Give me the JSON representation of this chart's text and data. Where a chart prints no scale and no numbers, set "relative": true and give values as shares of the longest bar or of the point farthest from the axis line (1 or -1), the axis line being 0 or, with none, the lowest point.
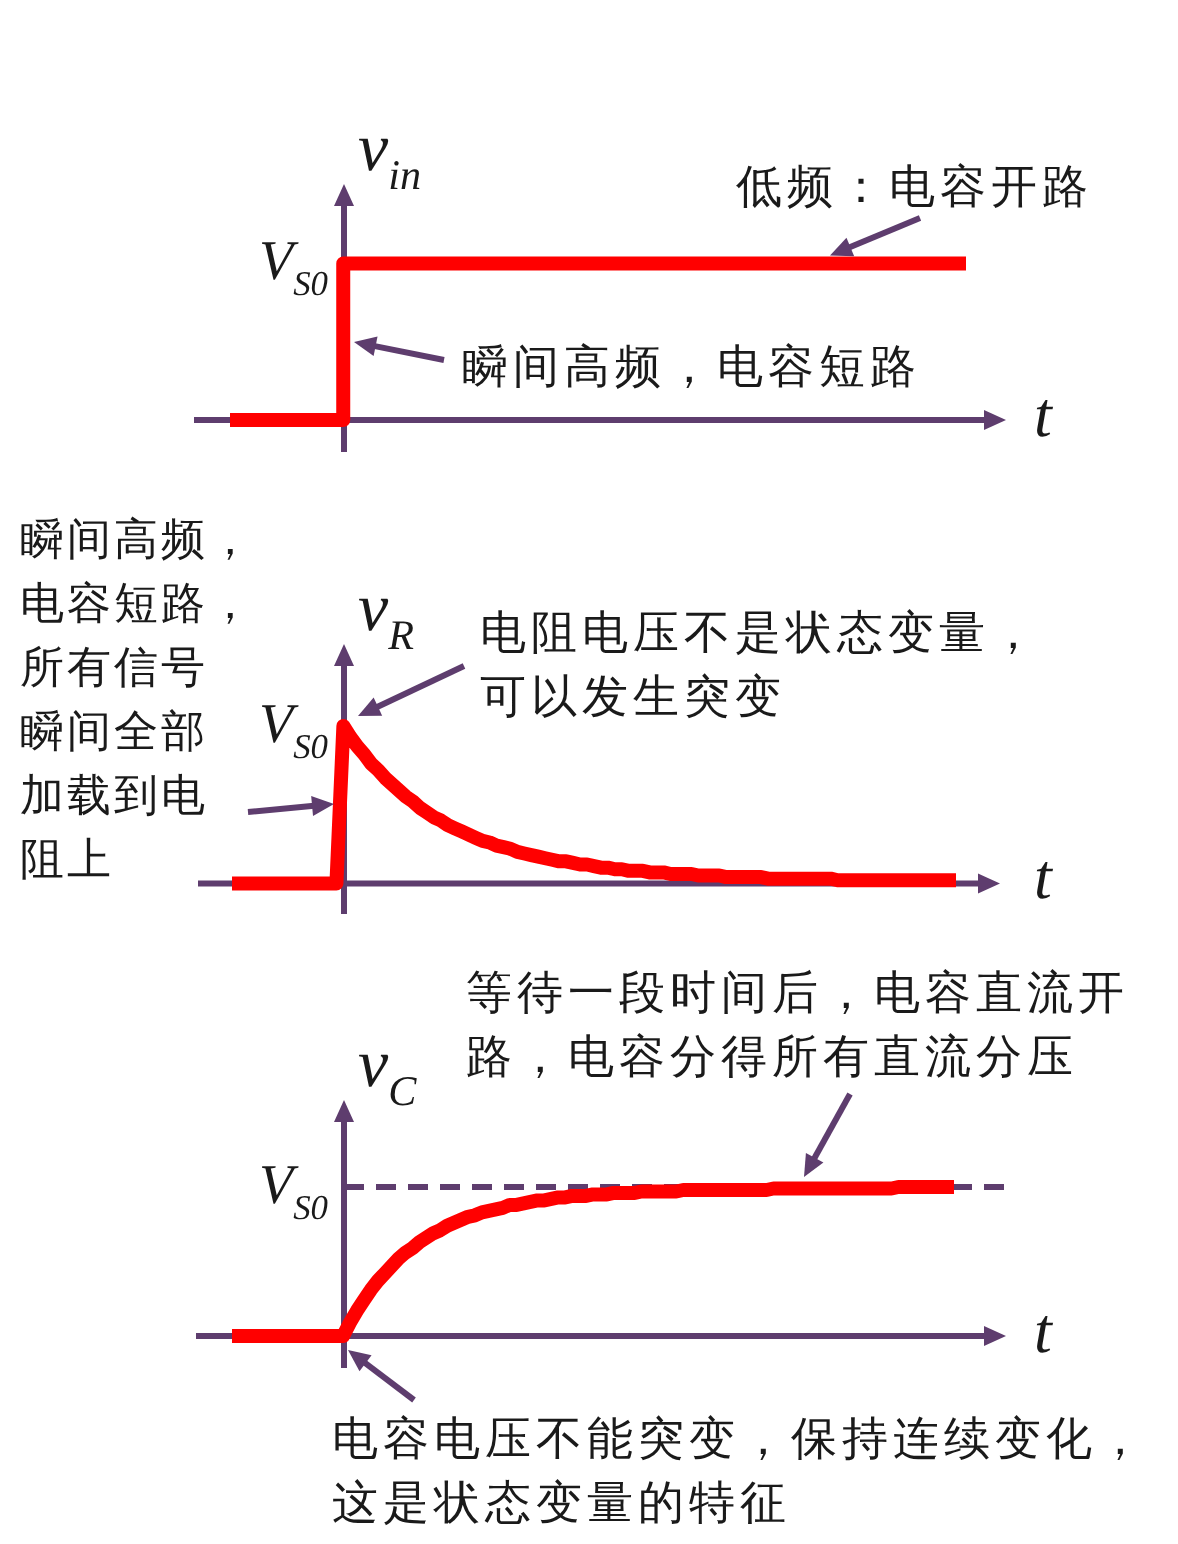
{
  "chart_data": [
    {
      "type": "step",
      "relative": true,
      "ylabel": "v$_{in}$",
      "xlabel": "t",
      "categories": [
        null,
        null,
        null,
        null,
        null,
        null,
        null,
        null,
        null,
        null,
        null,
        null,
        null,
        null
      ],
      "series": [
        {
          "color": "#ff0000",
          "values": [
            0,
            0,
            1,
            1,
            1,
            1,
            1,
            1,
            1,
            1,
            1,
            1,
            1,
            1
          ]
        }
      ],
      "annotations": [
        "V$_{S0}$",
        {
          "text": "低频：电容开路",
          "y": 1
        },
        "瞬间高频，电容短路"
      ]
    },
    {
      "type": "line",
      "relative": true,
      "ylabel": "v$_{R}$",
      "xlabel": "t",
      "categories": [
        null,
        null,
        null,
        null,
        null,
        null,
        null,
        null,
        null,
        null,
        null,
        null,
        null,
        null,
        null,
        null,
        null,
        null,
        null,
        null,
        null,
        null,
        null,
        null,
        null,
        null,
        null,
        null,
        null,
        null,
        null,
        null,
        null,
        null,
        null,
        null,
        null,
        null,
        null,
        null,
        null,
        null,
        null,
        null,
        null,
        null,
        null,
        null,
        null,
        null,
        null,
        null,
        null,
        null,
        null,
        null,
        null,
        null,
        null,
        null,
        null,
        null,
        null,
        null,
        null,
        null,
        null,
        null,
        null,
        null,
        null,
        null,
        null,
        null,
        null,
        null,
        null,
        null,
        null,
        null,
        null,
        null,
        null,
        null,
        null,
        null,
        null,
        null,
        null,
        null,
        null,
        null,
        null,
        null,
        null,
        null,
        null,
        null,
        null,
        null,
        null,
        null,
        null,
        null,
        null
      ],
      "series": [
        {
          "color": "#ff0000",
          "values": [
            0,
            0,
            0,
            0,
            0,
            0,
            0,
            0,
            0,
            0,
            0,
            0,
            0,
            0,
            0,
            0,
            1,
            0.93,
            0.87,
            0.82,
            0.76,
            0.72,
            0.67,
            0.63,
            0.59,
            0.55,
            0.52,
            0.48,
            0.45,
            0.42,
            0.4,
            0.37,
            0.35,
            0.33,
            0.31,
            0.29,
            0.27,
            0.26,
            0.24,
            0.23,
            0.22,
            0.2,
            0.19,
            0.18,
            0.17,
            0.16,
            0.15,
            0.14,
            0.14,
            0.13,
            0.12,
            0.12,
            0.11,
            0.1,
            0.1,
            0.09,
            0.09,
            0.08,
            0.08,
            0.08,
            0.07,
            0.07,
            0.07,
            0.06,
            0.06,
            0.06,
            0.06,
            0.05,
            0.05,
            0.05,
            0.05,
            0.04,
            0.04,
            0.04,
            0.04,
            0.04,
            0.04,
            0.03,
            0.03,
            0.03,
            0.03,
            0.03,
            0.03,
            0.03,
            0.03,
            0.03,
            0.03,
            0.02,
            0.02,
            0.02,
            0.02,
            0.02,
            0.02,
            0.02,
            0.02,
            0.02,
            0.02,
            0.02,
            0.02,
            0.02,
            0.02,
            0.02,
            0.02,
            0.02,
            0.02
          ]
        }
      ],
      "annotations": [
        "V$_{S0}$",
        "电阻电压不是状态变量，可以发生突变",
        "瞬间高频，电容短路，所有信号瞬间全部加载到电阻上"
      ]
    },
    {
      "type": "line",
      "relative": true,
      "ylabel": "v$_{C}$",
      "xlabel": "t",
      "categories": [
        null,
        null,
        null,
        null,
        null,
        null,
        null,
        null,
        null,
        null,
        null,
        null,
        null,
        null,
        null,
        null,
        null,
        null,
        null,
        null,
        null,
        null,
        null,
        null,
        null,
        null,
        null,
        null,
        null,
        null,
        null,
        null,
        null,
        null,
        null,
        null,
        null,
        null,
        null,
        null,
        null,
        null,
        null,
        null,
        null,
        null,
        null,
        null,
        null,
        null,
        null,
        null,
        null,
        null,
        null,
        null,
        null,
        null,
        null,
        null,
        null,
        null,
        null,
        null,
        null,
        null,
        null,
        null,
        null,
        null,
        null,
        null,
        null,
        null,
        null,
        null,
        null,
        null,
        null,
        null,
        null,
        null,
        null,
        null,
        null,
        null,
        null,
        null,
        null,
        null,
        null,
        null,
        null,
        null,
        null,
        null,
        null,
        null,
        null,
        null,
        null,
        null,
        null,
        null,
        null
      ],
      "series": [
        {
          "color": "#ff0000",
          "values": [
            0,
            0,
            0,
            0,
            0,
            0,
            0,
            0,
            0,
            0,
            0,
            0,
            0,
            0,
            0,
            0,
            0,
            0.09,
            0.17,
            0.24,
            0.31,
            0.37,
            0.42,
            0.47,
            0.52,
            0.56,
            0.59,
            0.63,
            0.66,
            0.69,
            0.71,
            0.74,
            0.76,
            0.78,
            0.8,
            0.81,
            0.83,
            0.84,
            0.85,
            0.86,
            0.88,
            0.88,
            0.89,
            0.9,
            0.91,
            0.91,
            0.92,
            0.93,
            0.93,
            0.94,
            0.94,
            0.94,
            0.95,
            0.95,
            0.95,
            0.96,
            0.96,
            0.96,
            0.96,
            0.97,
            0.97,
            0.97,
            0.97,
            0.97,
            0.97,
            0.98,
            0.98,
            0.98,
            0.98,
            0.98,
            0.98,
            0.98,
            0.98,
            0.98,
            0.98,
            0.98,
            0.98,
            0.98,
            0.99,
            0.99,
            0.99,
            0.99,
            0.99,
            0.99,
            0.99,
            0.99,
            0.99,
            0.99,
            0.99,
            0.99,
            0.99,
            0.99,
            0.99,
            0.99,
            0.99,
            0.99,
            1,
            1,
            1,
            1,
            1,
            1,
            1,
            1,
            1
          ]
        }
      ],
      "ref_lines": [
        {
          "axis": "y",
          "value": 1,
          "label": "V$_{S0}$",
          "color": "#5e3d6e",
          "line_style": "dashed"
        }
      ],
      "annotations": [
        {
          "text": "等待一段时间后，电容直流开路，电容分得所有直流分压",
          "y": 1
        },
        "电容电压不能突变，保持连续变化，这是状态变量的特征"
      ]
    }
  ]
}
